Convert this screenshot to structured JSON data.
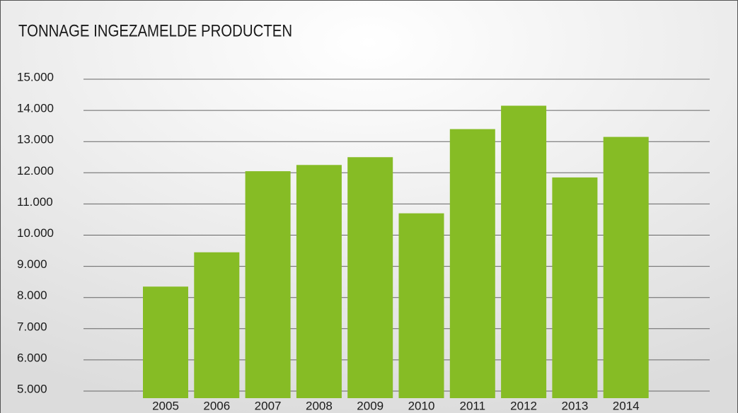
{
  "chart_data": {
    "type": "bar",
    "title": "TONNAGE INGEZAMELDE PRODUCTEN",
    "categories": [
      "2005",
      "2006",
      "2007",
      "2008",
      "2009",
      "2010",
      "2011",
      "2012",
      "2013",
      "2014"
    ],
    "values": [
      8350,
      9450,
      12050,
      12250,
      12500,
      10700,
      13400,
      14150,
      11850,
      13150
    ],
    "color": "#86bc25",
    "ylim": [
      5000,
      15000
    ],
    "yticks": [
      {
        "value": 5000,
        "label": "5.000"
      },
      {
        "value": 6000,
        "label": "6.000"
      },
      {
        "value": 7000,
        "label": "7.000"
      },
      {
        "value": 8000,
        "label": "8.000"
      },
      {
        "value": 9000,
        "label": "9.000"
      },
      {
        "value": 10000,
        "label": "10.000"
      },
      {
        "value": 11000,
        "label": "11.000"
      },
      {
        "value": 12000,
        "label": "12.000"
      },
      {
        "value": 13000,
        "label": "13.000"
      },
      {
        "value": 14000,
        "label": "14.000"
      },
      {
        "value": 15000,
        "label": "15.000"
      }
    ],
    "grid": true
  }
}
